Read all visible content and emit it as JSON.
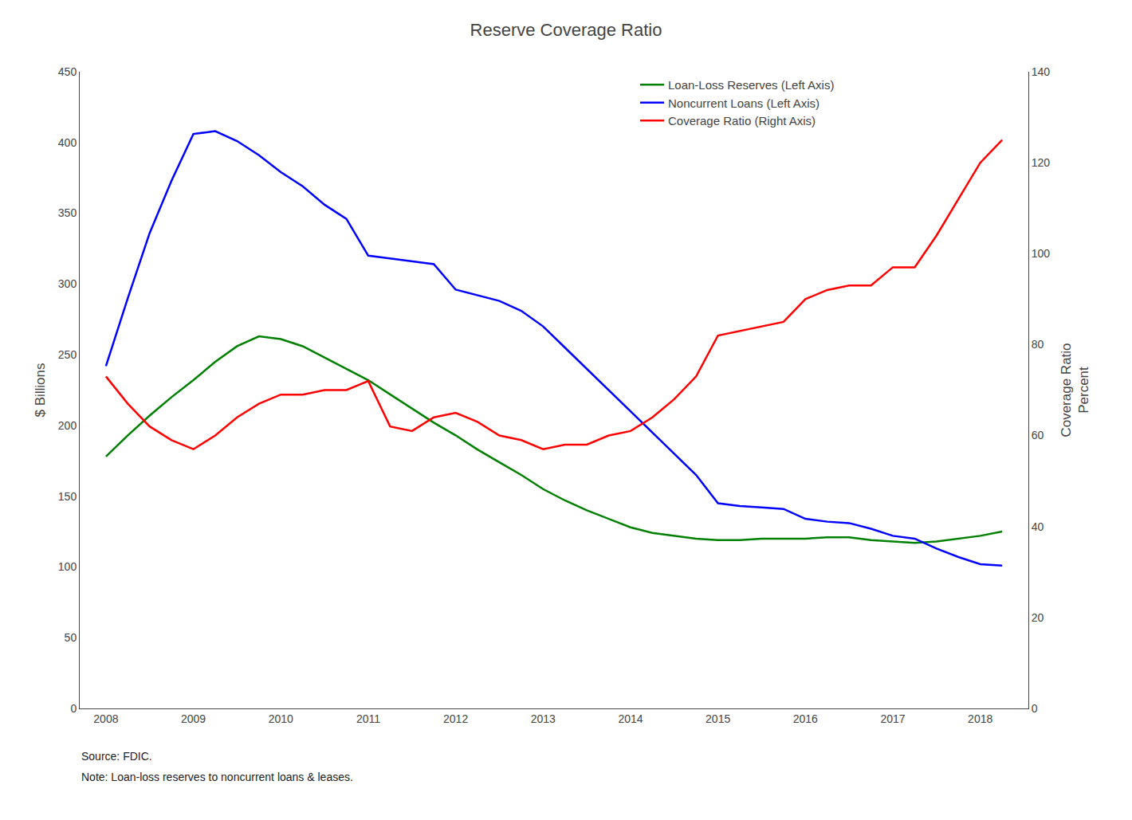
{
  "chart_data": {
    "type": "line",
    "title": "Reserve Coverage Ratio",
    "ylabel": "$ Billions",
    "y2label": "Coverage Ratio\nPercent",
    "annotations": [
      "Source: FDIC.",
      "Note: Loan-loss reserves to noncurrent loans & leases."
    ],
    "x": [
      2008.0,
      2008.25,
      2008.5,
      2008.75,
      2009.0,
      2009.25,
      2009.5,
      2009.75,
      2010.0,
      2010.25,
      2010.5,
      2010.75,
      2011.0,
      2011.25,
      2011.5,
      2011.75,
      2012.0,
      2012.25,
      2012.5,
      2012.75,
      2013.0,
      2013.25,
      2013.5,
      2013.75,
      2014.0,
      2014.25,
      2014.5,
      2014.75,
      2015.0,
      2015.25,
      2015.5,
      2015.75,
      2016.0,
      2016.25,
      2016.5,
      2016.75,
      2017.0,
      2017.25,
      2017.5,
      2017.75,
      2018.0,
      2018.25
    ],
    "xlim": [
      2007.7,
      2018.55
    ],
    "xticks": [
      2008,
      2009,
      2010,
      2011,
      2012,
      2013,
      2014,
      2015,
      2016,
      2017,
      2018
    ],
    "ylim": [
      0,
      450
    ],
    "yticks": [
      0,
      50,
      100,
      150,
      200,
      250,
      300,
      350,
      400,
      450
    ],
    "y2lim": [
      0,
      140
    ],
    "y2ticks": [
      0,
      20,
      40,
      60,
      80,
      100,
      120,
      140
    ],
    "grid": false,
    "legend": "upper right",
    "series": [
      {
        "name": "Loan-Loss Reserves (Left Axis)",
        "color": "#008000",
        "values": [
          178,
          193,
          207,
          220,
          232,
          245,
          256,
          263,
          261,
          256,
          248,
          240,
          232,
          222,
          212,
          202,
          193,
          183,
          174,
          165,
          155,
          147,
          140,
          134,
          128,
          124,
          122,
          120,
          119,
          119,
          120,
          120,
          120,
          121,
          121,
          119,
          118,
          117,
          118,
          120,
          122,
          125
        ]
      },
      {
        "name": "Noncurrent Loans (Left Axis)",
        "color": "#0000FF",
        "values": [
          242,
          290,
          336,
          373,
          406,
          408,
          401,
          391,
          379,
          369,
          356,
          346,
          320,
          318,
          316,
          314,
          296,
          292,
          288,
          281,
          270,
          255,
          240,
          225,
          210,
          195,
          180,
          165,
          145,
          143,
          142,
          141,
          134,
          132,
          131,
          127,
          122,
          120,
          113,
          107,
          102,
          101
        ]
      },
      {
        "name": "Coverage Ratio (Right Axis)",
        "color": "#FF0000",
        "axis": "y2",
        "values": [
          73,
          67,
          62,
          59,
          57,
          60,
          64,
          67,
          69,
          69,
          70,
          70,
          72,
          62,
          61,
          64,
          65,
          63,
          60,
          59,
          57,
          58,
          58,
          60,
          61,
          64,
          68,
          73,
          82,
          83,
          84,
          85,
          90,
          92,
          93,
          93,
          97,
          97,
          104,
          112,
          120,
          125
        ]
      }
    ]
  }
}
